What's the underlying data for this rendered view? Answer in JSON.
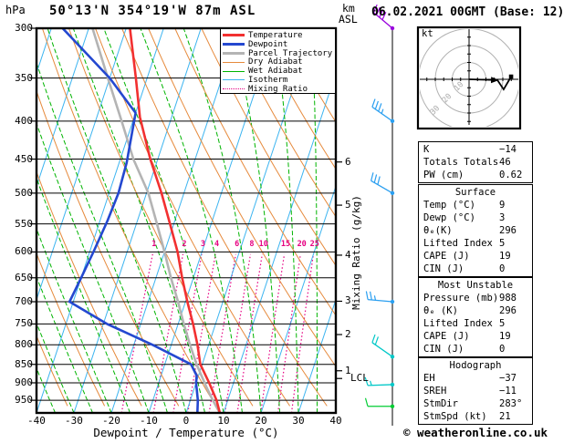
{
  "labels": {
    "pressure_unit": "hPa",
    "title": "50°13'N 354°19'W 87m ASL",
    "alt_unit_km": "km",
    "alt_unit_asl": "ASL",
    "date_title": "06.02.2021 00GMT (Base: 12)",
    "x_axis_title": "Dewpoint / Temperature (°C)",
    "mixing_ratio_axis_title": "Mixing Ratio (g/kg)",
    "lcl": "LCL",
    "copyright": "© weatheronline.co.uk"
  },
  "legend": {
    "items": [
      {
        "label": "Temperature",
        "color": "#f23030",
        "weight": 3,
        "dotted": false
      },
      {
        "label": "Dewpoint",
        "color": "#2448d0",
        "weight": 3,
        "dotted": false
      },
      {
        "label": "Parcel Trajectory",
        "color": "#b4b4b4",
        "weight": 3,
        "dotted": false
      },
      {
        "label": "Dry Adiabat",
        "color": "#e68a3c",
        "weight": 1.4,
        "dotted": false
      },
      {
        "label": "Wet Adiabat",
        "color": "#00b400",
        "weight": 1.4,
        "dotted": false
      },
      {
        "label": "Isotherm",
        "color": "#3cb4f0",
        "weight": 1.4,
        "dotted": false
      },
      {
        "label": "Mixing Ratio",
        "color": "#e60082",
        "weight": 1.6,
        "dotted": true
      }
    ]
  },
  "hodograph_panel": {
    "unit": "kt",
    "ring_labels": [
      "10",
      "20",
      "30"
    ]
  },
  "panels": [
    {
      "name": "indices",
      "title": null,
      "rows": [
        [
          "K",
          "−14"
        ],
        [
          "Totals Totals",
          "46"
        ],
        [
          "PW (cm)",
          "0.62"
        ]
      ]
    },
    {
      "name": "surface",
      "title": "Surface",
      "rows": [
        [
          "Temp (°C)",
          "9"
        ],
        [
          "Dewp (°C)",
          "3"
        ],
        [
          "θₑ(K)",
          "296"
        ],
        [
          "Lifted Index",
          "5"
        ],
        [
          "CAPE (J)",
          "19"
        ],
        [
          "CIN (J)",
          "0"
        ]
      ]
    },
    {
      "name": "most-unstable",
      "title": "Most Unstable",
      "rows": [
        [
          "Pressure (mb)",
          "988"
        ],
        [
          "θₑ (K)",
          "296"
        ],
        [
          "Lifted Index",
          "5"
        ],
        [
          "CAPE (J)",
          "19"
        ],
        [
          "CIN (J)",
          "0"
        ]
      ]
    },
    {
      "name": "hodograph",
      "title": "Hodograph",
      "rows": [
        [
          "EH",
          "−37"
        ],
        [
          "SREH",
          "−11"
        ],
        [
          "StmDir",
          "283°"
        ],
        [
          "StmSpd (kt)",
          "21"
        ]
      ]
    }
  ],
  "chart_data": {
    "type": "line",
    "subtype": "skew-t-log-p-sounding",
    "title": "50°13'N 354°19'W 87m ASL",
    "xlabel": "Dewpoint / Temperature (°C)",
    "ylabel": "hPa",
    "x_ticks_c": [
      -40,
      -30,
      -20,
      -10,
      0,
      10,
      20,
      30,
      40
    ],
    "xlim_c": [
      -40,
      40
    ],
    "pressure_ticks_hpa": [
      300,
      350,
      400,
      450,
      500,
      550,
      600,
      650,
      700,
      750,
      800,
      850,
      900,
      950
    ],
    "pressure_range_hpa": [
      300,
      988
    ],
    "surface_pressure_hpa": 988,
    "grid": true,
    "legend_position": "top-right",
    "series": [
      {
        "name": "Temperature",
        "color": "#f23030",
        "width": 2.6,
        "points_p_t": [
          [
            300,
            -49
          ],
          [
            350,
            -43
          ],
          [
            395,
            -38.5
          ],
          [
            450,
            -32
          ],
          [
            500,
            -26
          ],
          [
            550,
            -21
          ],
          [
            600,
            -16.5
          ],
          [
            650,
            -13
          ],
          [
            700,
            -9.5
          ],
          [
            750,
            -6
          ],
          [
            800,
            -3
          ],
          [
            850,
            -0.5
          ],
          [
            900,
            3.5
          ],
          [
            950,
            7
          ],
          [
            988,
            9
          ]
        ]
      },
      {
        "name": "Dewpoint",
        "color": "#2448d0",
        "width": 2.6,
        "points_p_t": [
          [
            300,
            -67
          ],
          [
            350,
            -50
          ],
          [
            390,
            -40
          ],
          [
            455,
            -38
          ],
          [
            500,
            -37.5
          ],
          [
            545,
            -38
          ],
          [
            600,
            -39
          ],
          [
            650,
            -40
          ],
          [
            700,
            -41
          ],
          [
            750,
            -29
          ],
          [
            800,
            -15
          ],
          [
            850,
            -3
          ],
          [
            880,
            -0.5
          ],
          [
            900,
            0
          ],
          [
            950,
            2
          ],
          [
            988,
            3
          ]
        ]
      },
      {
        "name": "Parcel Trajectory",
        "color": "#b4b4b4",
        "width": 2.6,
        "points_p_t": [
          [
            300,
            -59
          ],
          [
            350,
            -50.5
          ],
          [
            400,
            -43
          ],
          [
            450,
            -36.5
          ],
          [
            500,
            -29.5
          ],
          [
            550,
            -24.5
          ],
          [
            600,
            -20
          ],
          [
            650,
            -16
          ],
          [
            700,
            -12
          ],
          [
            750,
            -8.5
          ],
          [
            800,
            -5
          ],
          [
            850,
            -1.5
          ],
          [
            910,
            3
          ],
          [
            950,
            6
          ],
          [
            988,
            9
          ]
        ]
      }
    ],
    "background": {
      "isotherm_step_c": 10,
      "dry_adiabat_theta_step_c": 10,
      "wet_adiabat_step_c": 5,
      "isotherm_color": "#3cb4f0",
      "dry_adiabat_color": "#e68a3c",
      "wet_adiabat_color": "#00b400",
      "mixing_ratio_color": "#e60082"
    },
    "mixing_ratio_g_kg": [
      1,
      2,
      3,
      4,
      6,
      8,
      10,
      15,
      20,
      25
    ],
    "km_ticks": [
      {
        "km": "6",
        "p": 454
      },
      {
        "km": "5",
        "p": 519
      },
      {
        "km": "4",
        "p": 606
      },
      {
        "km": "3",
        "p": 699
      },
      {
        "km": "2",
        "p": 775
      },
      {
        "km": "1",
        "p": 867
      }
    ],
    "lcl_pressure_hpa": 888,
    "wind_barbs": [
      {
        "p": 300,
        "kt": 40,
        "dir": 310,
        "color": "#9900dd"
      },
      {
        "p": 400,
        "kt": 35,
        "dir": 305,
        "color": "#2b9ff0"
      },
      {
        "p": 500,
        "kt": 30,
        "dir": 300,
        "color": "#2b9ff0"
      },
      {
        "p": 700,
        "kt": 25,
        "dir": 275,
        "color": "#2b9ff0"
      },
      {
        "p": 830,
        "kt": 20,
        "dir": 305,
        "color": "#00c8c8"
      },
      {
        "p": 905,
        "kt": 15,
        "dir": 268,
        "color": "#00c8c8"
      },
      {
        "p": 968,
        "kt": 10,
        "dir": 270,
        "color": "#00cc33"
      }
    ],
    "hodograph_trace_kt": [
      [
        0,
        0
      ],
      [
        16.8,
        -0.5
      ],
      [
        20.5,
        -6
      ],
      [
        24.9,
        1.6
      ]
    ],
    "hodograph_ring_step_kt": 10
  }
}
